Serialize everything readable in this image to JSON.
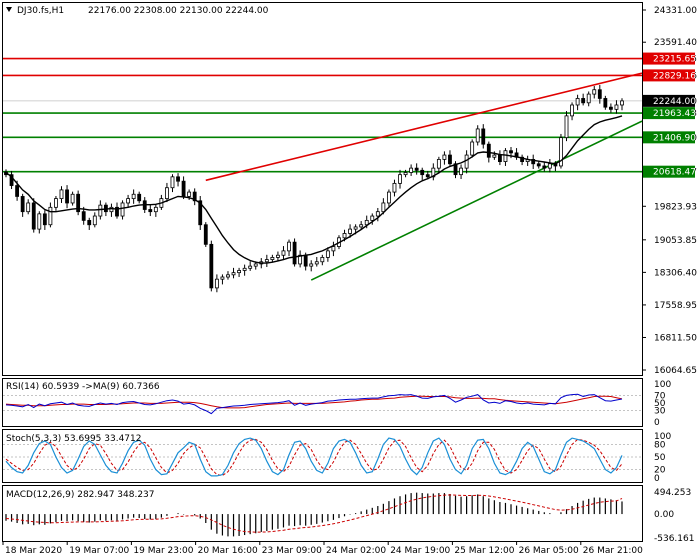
{
  "header": {
    "symbol": "DJ30.fs,H1",
    "ohlc": "22176.00 22308.00 22130.00 22244.00"
  },
  "colors": {
    "resistance": "#e00000",
    "support": "#008000",
    "candle": "#000000",
    "ma": "#000000",
    "rsi": "#0000cc",
    "rsi_ma": "#cc0000",
    "stoch_main": "#1a8fd6",
    "stoch_signal": "#cc0000",
    "macd_hist": "#000000",
    "macd_signal": "#cc0000",
    "price_tag_bg": "#000000"
  },
  "chart_data": [
    {
      "type": "candlestick",
      "name": "price",
      "title": "DJ30.fs,H1 22176.00 22308.00 22130.00 22244.00",
      "ylim": [
        16064.65,
        24331.0
      ],
      "y_ticks": [
        "24331.00",
        "23591.40",
        "23215.65",
        "22829.16",
        "22244.00",
        "21963.43",
        "21406.90",
        "20618.47",
        "19823.93",
        "19053.85",
        "18306.40",
        "17558.95",
        "16811.50",
        "16064.65"
      ],
      "x_ticks": [
        "18 Mar 2020",
        "19 Mar 07:00",
        "19 Mar 23:00",
        "20 Mar 16:00",
        "23 Mar 09:00",
        "24 Mar 02:00",
        "24 Mar 19:00",
        "25 Mar 12:00",
        "26 Mar 05:00",
        "26 Mar 21:00"
      ],
      "horizontal_levels": [
        {
          "value": 23215.65,
          "label": "23215.65",
          "kind": "resistance"
        },
        {
          "value": 22829.16,
          "label": "22829.16",
          "kind": "resistance"
        },
        {
          "value": 21963.43,
          "label": "21963.43",
          "kind": "support"
        },
        {
          "value": 21406.9,
          "label": "21406.90",
          "kind": "support"
        },
        {
          "value": 20618.47,
          "label": "20618.47",
          "kind": "support"
        }
      ],
      "current_price": {
        "value": 22244.0,
        "label": "22244.00"
      },
      "trendlines": [
        {
          "kind": "resistance",
          "from": {
            "bar": 36,
            "price": 20420
          },
          "to": {
            "bar": 112,
            "price": 22800
          }
        },
        {
          "kind": "support",
          "from": {
            "bar": 55,
            "price": 18130
          },
          "to": {
            "bar": 112,
            "price": 21620
          }
        }
      ],
      "closes": [
        20550,
        20300,
        20050,
        19700,
        19900,
        19300,
        19650,
        19400,
        19800,
        20000,
        20200,
        19900,
        20100,
        19700,
        19500,
        19400,
        19600,
        19850,
        19700,
        19800,
        19600,
        19900,
        20000,
        20100,
        19950,
        19750,
        19700,
        19800,
        20000,
        20250,
        20500,
        20400,
        20050,
        20150,
        19950,
        19400,
        18950,
        17950,
        18150,
        18200,
        18250,
        18300,
        18350,
        18400,
        18450,
        18500,
        18550,
        18600,
        18650,
        18700,
        18800,
        19000,
        18500,
        18700,
        18450,
        18500,
        18550,
        18650,
        18800,
        18900,
        19100,
        19200,
        19300,
        19350,
        19400,
        19500,
        19600,
        19700,
        19900,
        20150,
        20350,
        20550,
        20600,
        20700,
        20650,
        20550,
        20500,
        20700,
        20900,
        21000,
        20800,
        20550,
        20700,
        21000,
        21300,
        21600,
        21250,
        20950,
        21000,
        20850,
        21100,
        21050,
        20950,
        20850,
        20900,
        20800,
        20750,
        20700,
        20800,
        20750,
        21400,
        21900,
        22150,
        22300,
        22200,
        22400,
        22500,
        22300,
        22100,
        22050,
        22150,
        22244
      ],
      "ma": [
        20600,
        20500,
        20350,
        20200,
        20100,
        19950,
        19850,
        19750,
        19700,
        19700,
        19720,
        19740,
        19760,
        19770,
        19760,
        19740,
        19740,
        19750,
        19760,
        19770,
        19760,
        19780,
        19800,
        19830,
        19850,
        19860,
        19860,
        19870,
        19900,
        19950,
        20000,
        20050,
        20040,
        20020,
        19980,
        19900,
        19750,
        19550,
        19350,
        19150,
        18980,
        18830,
        18720,
        18640,
        18580,
        18540,
        18520,
        18520,
        18540,
        18570,
        18600,
        18640,
        18660,
        18680,
        18700,
        18720,
        18760,
        18800,
        18860,
        18920,
        18990,
        19060,
        19130,
        19210,
        19290,
        19380,
        19470,
        19560,
        19680,
        19800,
        19920,
        20040,
        20150,
        20250,
        20340,
        20410,
        20460,
        20520,
        20590,
        20680,
        20740,
        20780,
        20820,
        20880,
        20960,
        21050,
        21070,
        21060,
        21040,
        21010,
        21000,
        20980,
        20960,
        20930,
        20900,
        20880,
        20860,
        20840,
        20820,
        20800,
        20870,
        20990,
        21160,
        21330,
        21460,
        21590,
        21700,
        21760,
        21800,
        21830,
        21860,
        21900
      ]
    },
    {
      "type": "line",
      "name": "rsi",
      "title": "RSI(14) 60.5939 ->MA(9) 60.7366",
      "ylim": [
        0,
        100
      ],
      "y_ticks": [
        "100",
        "70",
        "50",
        "30",
        "0"
      ],
      "series": [
        {
          "name": "RSI(14)",
          "values": [
            45,
            44,
            42,
            40,
            46,
            38,
            47,
            43,
            48,
            50,
            52,
            46,
            50,
            44,
            42,
            41,
            46,
            50,
            47,
            49,
            46,
            51,
            53,
            54,
            50,
            46,
            45,
            48,
            52,
            56,
            58,
            55,
            47,
            49,
            45,
            36,
            30,
            22,
            36,
            38,
            40,
            42,
            43,
            44,
            46,
            47,
            48,
            49,
            50,
            51,
            53,
            56,
            44,
            50,
            44,
            47,
            49,
            51,
            55,
            56,
            58,
            59,
            60,
            60,
            61,
            62,
            63,
            63,
            66,
            69,
            70,
            72,
            71,
            72,
            68,
            63,
            62,
            66,
            68,
            70,
            62,
            52,
            58,
            65,
            68,
            72,
            58,
            50,
            52,
            49,
            56,
            54,
            50,
            48,
            50,
            47,
            46,
            45,
            49,
            48,
            64,
            70,
            72,
            73,
            67,
            71,
            72,
            64,
            56,
            55,
            58,
            60.59
          ]
        },
        {
          "name": "MA(9)",
          "values": [
            47,
            46,
            45,
            44,
            44,
            43,
            43,
            43,
            44,
            45,
            46,
            46,
            47,
            47,
            47,
            46,
            46,
            46,
            46,
            47,
            47,
            48,
            49,
            50,
            50,
            50,
            49,
            49,
            49,
            50,
            51,
            52,
            52,
            52,
            51,
            49,
            46,
            43,
            40,
            38,
            37,
            37,
            37,
            38,
            40,
            42,
            44,
            46,
            47,
            48,
            49,
            50,
            49,
            49,
            49,
            49,
            49,
            49,
            50,
            51,
            52,
            53,
            55,
            56,
            58,
            59,
            60,
            60,
            61,
            62,
            63,
            65,
            66,
            67,
            68,
            68,
            67,
            67,
            67,
            67,
            66,
            64,
            63,
            62,
            62,
            63,
            62,
            61,
            61,
            59,
            57,
            56,
            55,
            54,
            53,
            52,
            51,
            50,
            49,
            48,
            50,
            52,
            55,
            58,
            61,
            64,
            67,
            68,
            68,
            67,
            64,
            60.74
          ]
        }
      ]
    },
    {
      "type": "line",
      "name": "stochastic",
      "title": "Stoch(5,3,3) 53.6995 33.4712",
      "ylim": [
        0,
        100
      ],
      "y_ticks": [
        "100",
        "80",
        "50",
        "20",
        "0"
      ],
      "series": [
        {
          "name": "%K",
          "values": [
            40,
            25,
            15,
            12,
            30,
            60,
            82,
            88,
            80,
            50,
            25,
            12,
            18,
            45,
            75,
            88,
            80,
            55,
            30,
            15,
            12,
            35,
            65,
            85,
            90,
            78,
            45,
            20,
            8,
            10,
            35,
            60,
            72,
            85,
            80,
            45,
            15,
            5,
            5,
            8,
            30,
            60,
            82,
            92,
            95,
            90,
            70,
            40,
            15,
            8,
            20,
            55,
            85,
            88,
            70,
            40,
            18,
            12,
            35,
            70,
            88,
            92,
            85,
            60,
            30,
            12,
            15,
            45,
            80,
            95,
            92,
            75,
            45,
            20,
            8,
            25,
            60,
            88,
            95,
            80,
            45,
            20,
            10,
            30,
            70,
            90,
            92,
            70,
            35,
            12,
            8,
            15,
            40,
            70,
            85,
            75,
            45,
            15,
            10,
            20,
            55,
            85,
            95,
            92,
            88,
            80,
            70,
            45,
            20,
            12,
            25,
            53.7
          ]
        },
        {
          "name": "%D",
          "values": [
            45,
            35,
            25,
            18,
            20,
            35,
            58,
            78,
            85,
            75,
            52,
            30,
            18,
            25,
            45,
            70,
            82,
            78,
            58,
            35,
            18,
            20,
            38,
            62,
            80,
            85,
            72,
            48,
            25,
            12,
            18,
            35,
            58,
            72,
            80,
            72,
            48,
            22,
            8,
            6,
            15,
            35,
            60,
            80,
            90,
            92,
            85,
            68,
            42,
            22,
            15,
            28,
            55,
            78,
            82,
            68,
            42,
            24,
            20,
            38,
            65,
            85,
            90,
            80,
            58,
            35,
            18,
            22,
            45,
            72,
            88,
            90,
            75,
            48,
            25,
            15,
            30,
            58,
            80,
            90,
            75,
            48,
            25,
            18,
            35,
            65,
            85,
            85,
            68,
            40,
            18,
            12,
            20,
            42,
            65,
            78,
            70,
            45,
            22,
            15,
            28,
            55,
            80,
            92,
            90,
            85,
            78,
            65,
            45,
            25,
            18,
            33.47
          ]
        }
      ]
    },
    {
      "type": "bar",
      "name": "macd",
      "title": "MACD(12,26,9) 282.947 348.237",
      "ylim": [
        -536.161,
        494.253
      ],
      "y_ticks": [
        "494.253",
        "0.00",
        "-536.161"
      ],
      "series": [
        {
          "name": "MACD",
          "values": [
            -150,
            -170,
            -200,
            -230,
            -220,
            -250,
            -230,
            -240,
            -210,
            -180,
            -150,
            -160,
            -140,
            -160,
            -180,
            -190,
            -170,
            -140,
            -150,
            -140,
            -150,
            -120,
            -100,
            -80,
            -90,
            -110,
            -120,
            -110,
            -80,
            -40,
            0,
            20,
            -10,
            0,
            -30,
            -100,
            -200,
            -350,
            -440,
            -480,
            -500,
            -500,
            -490,
            -470,
            -450,
            -430,
            -400,
            -380,
            -350,
            -330,
            -300,
            -260,
            -270,
            -250,
            -260,
            -240,
            -220,
            -190,
            -160,
            -130,
            -90,
            -50,
            -10,
            20,
            60,
            100,
            140,
            180,
            230,
            290,
            350,
            400,
            440,
            470,
            480,
            470,
            460,
            460,
            470,
            470,
            450,
            410,
            390,
            400,
            420,
            440,
            400,
            350,
            310,
            270,
            250,
            220,
            190,
            160,
            130,
            100,
            70,
            40,
            20,
            0,
            40,
            110,
            180,
            250,
            300,
            340,
            370,
            370,
            350,
            330,
            310,
            282.95
          ]
        },
        {
          "name": "Signal",
          "values": [
            -100,
            -110,
            -125,
            -140,
            -155,
            -170,
            -180,
            -190,
            -195,
            -195,
            -190,
            -185,
            -180,
            -175,
            -175,
            -176,
            -175,
            -170,
            -166,
            -160,
            -158,
            -150,
            -140,
            -128,
            -120,
            -118,
            -118,
            -116,
            -109,
            -95,
            -76,
            -57,
            -47,
            -38,
            -36,
            -49,
            -80,
            -130,
            -190,
            -250,
            -300,
            -340,
            -370,
            -390,
            -400,
            -406,
            -405,
            -400,
            -390,
            -378,
            -362,
            -342,
            -328,
            -312,
            -301,
            -289,
            -275,
            -258,
            -238,
            -217,
            -192,
            -163,
            -132,
            -101,
            -69,
            -35,
            0,
            36,
            75,
            118,
            164,
            211,
            257,
            300,
            336,
            363,
            382,
            398,
            412,
            424,
            429,
            425,
            418,
            415,
            416,
            421,
            417,
            404,
            385,
            362,
            340,
            316,
            291,
            265,
            238,
            210,
            182,
            153,
            127,
            101,
            89,
            93,
            110,
            138,
            170,
            203,
            237,
            263,
            280,
            290,
            294,
            348.24
          ]
        }
      ]
    }
  ]
}
